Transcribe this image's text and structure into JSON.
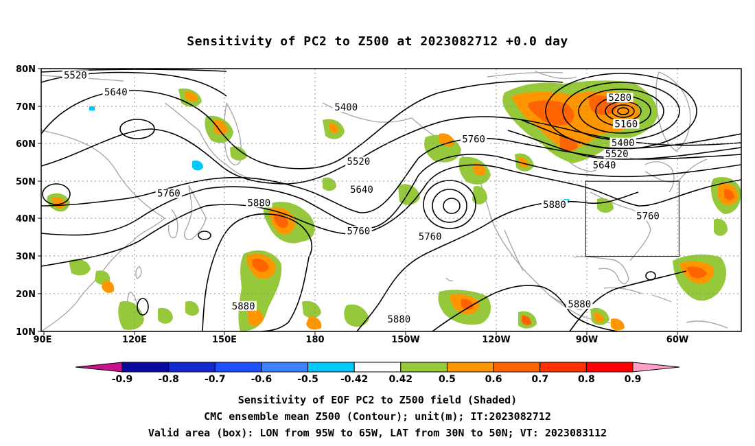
{
  "title": "Sensitivity of PC2 to Z500 at 2023082712 +0.0 day",
  "map": {
    "lat_labels": [
      "80N",
      "70N",
      "60N",
      "50N",
      "40N",
      "30N",
      "20N",
      "10N"
    ],
    "lon_labels": [
      "90E",
      "120E",
      "150E",
      "180",
      "150W",
      "120W",
      "90W",
      "60W"
    ],
    "lon_range": [
      "90E",
      "45W"
    ],
    "lat_range": [
      "10N",
      "80N"
    ],
    "contour_labels": [
      {
        "text": "5520",
        "lon": 101,
        "lat": 78.3
      },
      {
        "text": "5640",
        "lon": 114,
        "lat": 73.8
      },
      {
        "text": "5400",
        "lon": 188,
        "lat": 69.8
      },
      {
        "text": "5760",
        "lon": 131,
        "lat": 46.8
      },
      {
        "text": "5880",
        "lon": 160,
        "lat": 44.3
      },
      {
        "text": "5520",
        "lon": 192,
        "lat": 55.3
      },
      {
        "text": "5640",
        "lon": 193,
        "lat": 47.8
      },
      {
        "text": "5760",
        "lon": 192,
        "lat": 36.8
      },
      {
        "text": "5760",
        "lon": 215,
        "lat": 35.3
      },
      {
        "text": "5760",
        "lon": 229,
        "lat": 61.3
      },
      {
        "text": "5880",
        "lon": 255,
        "lat": 43.8
      },
      {
        "text": "5280",
        "lon": 276,
        "lat": 72.3
      },
      {
        "text": "5160",
        "lon": 278,
        "lat": 65.3
      },
      {
        "text": "5400",
        "lon": 277,
        "lat": 60.3
      },
      {
        "text": "5520",
        "lon": 275,
        "lat": 57.3
      },
      {
        "text": "5640",
        "lon": 271,
        "lat": 54.3
      },
      {
        "text": "5760",
        "lon": 285,
        "lat": 40.8
      },
      {
        "text": "5880",
        "lon": 155,
        "lat": 16.8
      },
      {
        "text": "5880",
        "lon": 205,
        "lat": 13.3
      },
      {
        "text": "5880",
        "lon": 263,
        "lat": 17.3
      }
    ],
    "valid_box": {
      "lon_west": 265,
      "lon_east": 295,
      "lat_south": 30,
      "lat_north": 50
    }
  },
  "colorbar": {
    "ticks": [
      "-0.9",
      "-0.8",
      "-0.7",
      "-0.6",
      "-0.5",
      "-0.42",
      "0.42",
      "0.5",
      "0.6",
      "0.7",
      "0.8",
      "0.9"
    ],
    "colors": {
      "below_min": "#c8148c",
      "bins": [
        "#0a0aa0",
        "#1428d2",
        "#1e50ff",
        "#3c82ff",
        "#00c8ff",
        "#ffffff",
        "#96c83c",
        "#ff9600",
        "#ff6400",
        "#ff3200",
        "#ff0000"
      ],
      "above_max": "#ffa0c8"
    }
  },
  "captions": {
    "line1": "Sensitivity of EOF PC2 to Z500 field (Shaded)",
    "line2": "CMC ensemble mean Z500 (Contour); unit(m); IT:2023082712",
    "line3": "Valid area (box): LON from 95W to 65W, LAT from 30N to 50N; VT: 2023083112"
  }
}
